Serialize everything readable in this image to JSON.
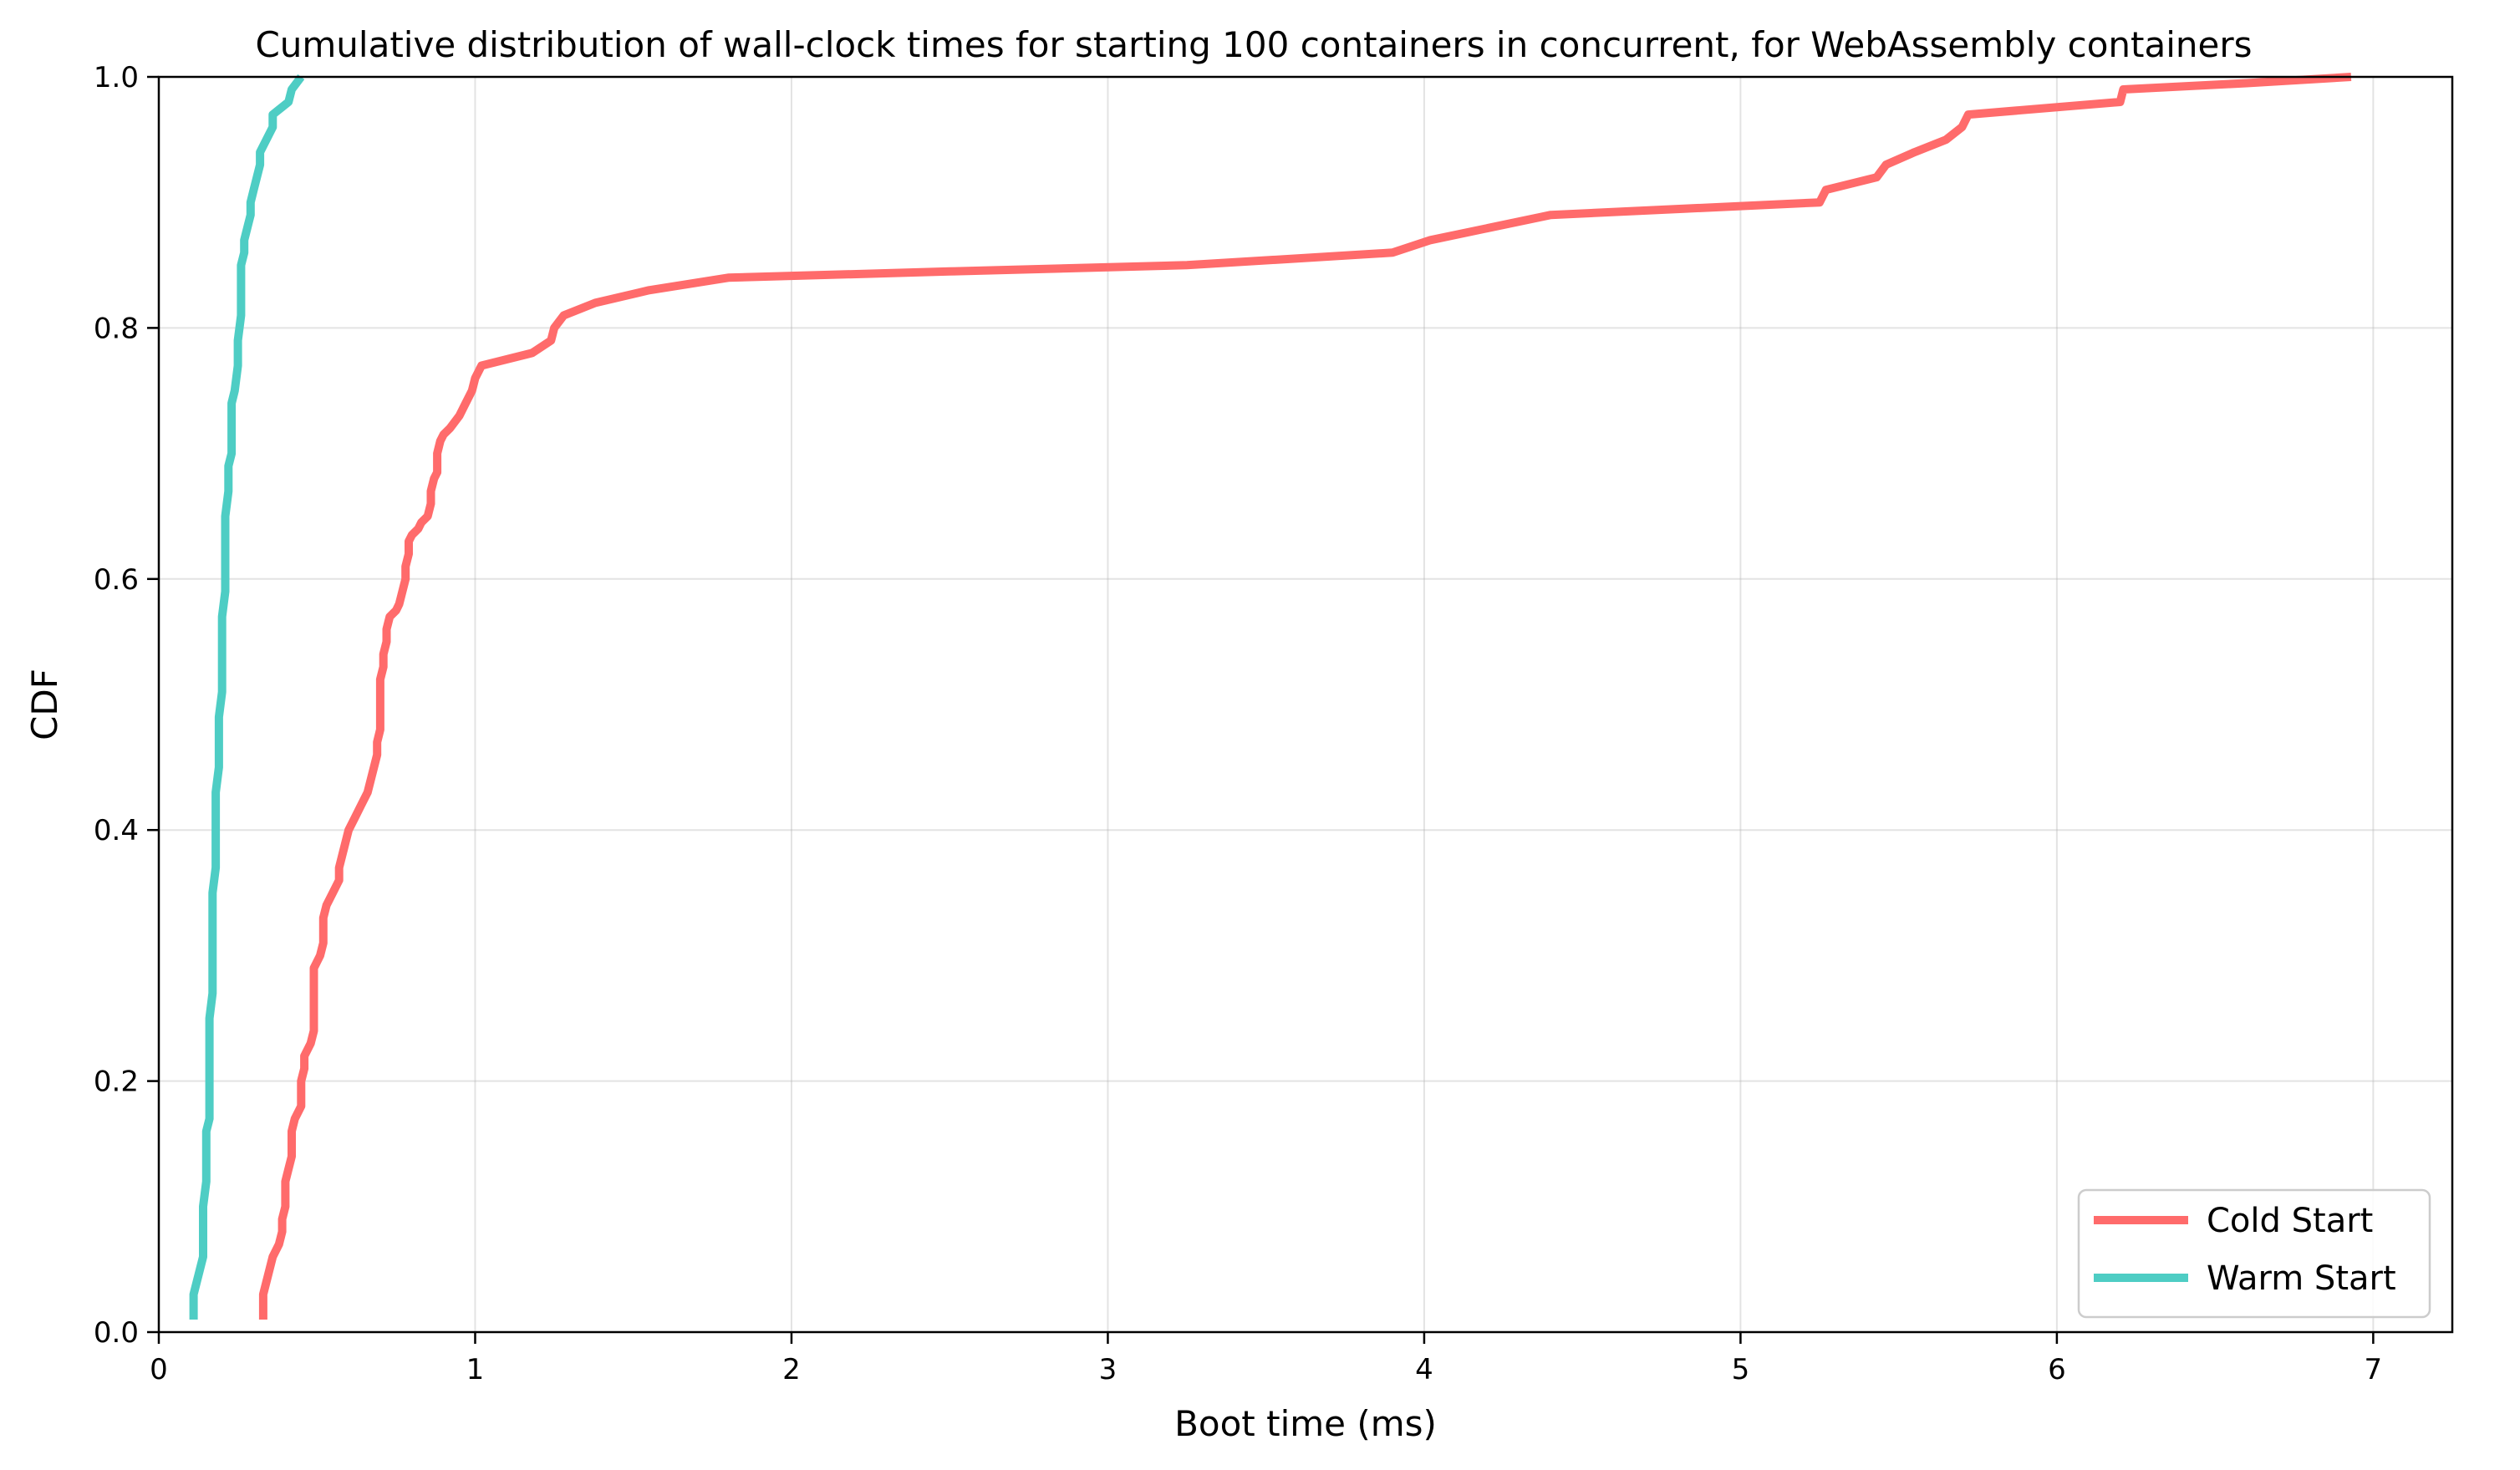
{
  "chart_data": {
    "type": "line",
    "title": "Cumulative distribution of wall-clock times for starting 100 containers in concurrent, for WebAssembly containers",
    "xlabel": "Boot time (ms)",
    "ylabel": "CDF",
    "xlim": [
      0,
      7.25
    ],
    "ylim": [
      0,
      1.0
    ],
    "xticks": [
      0,
      1,
      2,
      3,
      4,
      5,
      6,
      7
    ],
    "xtick_labels": [
      "0",
      "1",
      "2",
      "3",
      "4",
      "5",
      "6",
      "7"
    ],
    "yticks": [
      0.0,
      0.2,
      0.4,
      0.6,
      0.8,
      1.0
    ],
    "ytick_labels": [
      "0.0",
      "0.2",
      "0.4",
      "0.6",
      "0.8",
      "1.0"
    ],
    "grid": true,
    "legend_position": "lower-right",
    "series": [
      {
        "name": "Cold Start",
        "color": "#ff6b6b",
        "points": [
          [
            0.33,
            0.01
          ],
          [
            0.33,
            0.03
          ],
          [
            0.34,
            0.04
          ],
          [
            0.36,
            0.06
          ],
          [
            0.38,
            0.07
          ],
          [
            0.39,
            0.08
          ],
          [
            0.39,
            0.09
          ],
          [
            0.4,
            0.1
          ],
          [
            0.4,
            0.12
          ],
          [
            0.41,
            0.13
          ],
          [
            0.42,
            0.14
          ],
          [
            0.42,
            0.15
          ],
          [
            0.42,
            0.16
          ],
          [
            0.43,
            0.17
          ],
          [
            0.45,
            0.18
          ],
          [
            0.45,
            0.19
          ],
          [
            0.45,
            0.2
          ],
          [
            0.46,
            0.21
          ],
          [
            0.46,
            0.22
          ],
          [
            0.48,
            0.23
          ],
          [
            0.49,
            0.24
          ],
          [
            0.49,
            0.25
          ],
          [
            0.49,
            0.27
          ],
          [
            0.49,
            0.29
          ],
          [
            0.51,
            0.3
          ],
          [
            0.52,
            0.31
          ],
          [
            0.52,
            0.33
          ],
          [
            0.53,
            0.34
          ],
          [
            0.55,
            0.35
          ],
          [
            0.57,
            0.36
          ],
          [
            0.57,
            0.37
          ],
          [
            0.58,
            0.38
          ],
          [
            0.59,
            0.39
          ],
          [
            0.6,
            0.4
          ],
          [
            0.62,
            0.41
          ],
          [
            0.64,
            0.42
          ],
          [
            0.66,
            0.43
          ],
          [
            0.67,
            0.44
          ],
          [
            0.68,
            0.45
          ],
          [
            0.69,
            0.46
          ],
          [
            0.69,
            0.47
          ],
          [
            0.7,
            0.48
          ],
          [
            0.7,
            0.5
          ],
          [
            0.7,
            0.52
          ],
          [
            0.71,
            0.53
          ],
          [
            0.71,
            0.54
          ],
          [
            0.72,
            0.55
          ],
          [
            0.72,
            0.56
          ],
          [
            0.73,
            0.57
          ],
          [
            0.75,
            0.575
          ],
          [
            0.76,
            0.58
          ],
          [
            0.77,
            0.59
          ],
          [
            0.78,
            0.6
          ],
          [
            0.78,
            0.61
          ],
          [
            0.79,
            0.62
          ],
          [
            0.79,
            0.63
          ],
          [
            0.8,
            0.635
          ],
          [
            0.82,
            0.64
          ],
          [
            0.83,
            0.645
          ],
          [
            0.85,
            0.65
          ],
          [
            0.86,
            0.66
          ],
          [
            0.86,
            0.67
          ],
          [
            0.87,
            0.68
          ],
          [
            0.88,
            0.685
          ],
          [
            0.88,
            0.7
          ],
          [
            0.89,
            0.71
          ],
          [
            0.9,
            0.715
          ],
          [
            0.92,
            0.72
          ],
          [
            0.95,
            0.73
          ],
          [
            0.97,
            0.74
          ],
          [
            0.99,
            0.75
          ],
          [
            1.0,
            0.76
          ],
          [
            1.02,
            0.77
          ],
          [
            1.18,
            0.78
          ],
          [
            1.24,
            0.79
          ],
          [
            1.25,
            0.8
          ],
          [
            1.28,
            0.81
          ],
          [
            1.38,
            0.82
          ],
          [
            1.55,
            0.83
          ],
          [
            1.8,
            0.84
          ],
          [
            2.5,
            0.845
          ],
          [
            3.25,
            0.85
          ],
          [
            3.9,
            0.86
          ],
          [
            4.02,
            0.87
          ],
          [
            4.4,
            0.89
          ],
          [
            5.25,
            0.9
          ],
          [
            5.27,
            0.91
          ],
          [
            5.43,
            0.92
          ],
          [
            5.46,
            0.93
          ],
          [
            5.55,
            0.94
          ],
          [
            5.65,
            0.95
          ],
          [
            5.7,
            0.96
          ],
          [
            5.72,
            0.97
          ],
          [
            6.2,
            0.98
          ],
          [
            6.21,
            0.99
          ],
          [
            6.6,
            0.995
          ],
          [
            6.93,
            1.0
          ]
        ]
      },
      {
        "name": "Warm Start",
        "color": "#4ecdc4",
        "points": [
          [
            0.11,
            0.01
          ],
          [
            0.11,
            0.03
          ],
          [
            0.12,
            0.04
          ],
          [
            0.13,
            0.05
          ],
          [
            0.14,
            0.06
          ],
          [
            0.14,
            0.08
          ],
          [
            0.14,
            0.1
          ],
          [
            0.15,
            0.12
          ],
          [
            0.15,
            0.14
          ],
          [
            0.15,
            0.16
          ],
          [
            0.16,
            0.17
          ],
          [
            0.16,
            0.19
          ],
          [
            0.16,
            0.21
          ],
          [
            0.16,
            0.23
          ],
          [
            0.16,
            0.25
          ],
          [
            0.17,
            0.27
          ],
          [
            0.17,
            0.29
          ],
          [
            0.17,
            0.31
          ],
          [
            0.17,
            0.33
          ],
          [
            0.17,
            0.35
          ],
          [
            0.18,
            0.37
          ],
          [
            0.18,
            0.39
          ],
          [
            0.18,
            0.41
          ],
          [
            0.18,
            0.43
          ],
          [
            0.19,
            0.45
          ],
          [
            0.19,
            0.47
          ],
          [
            0.19,
            0.49
          ],
          [
            0.2,
            0.51
          ],
          [
            0.2,
            0.53
          ],
          [
            0.2,
            0.55
          ],
          [
            0.2,
            0.57
          ],
          [
            0.21,
            0.59
          ],
          [
            0.21,
            0.61
          ],
          [
            0.21,
            0.63
          ],
          [
            0.21,
            0.65
          ],
          [
            0.22,
            0.67
          ],
          [
            0.22,
            0.69
          ],
          [
            0.23,
            0.7
          ],
          [
            0.23,
            0.72
          ],
          [
            0.23,
            0.74
          ],
          [
            0.24,
            0.75
          ],
          [
            0.25,
            0.77
          ],
          [
            0.25,
            0.79
          ],
          [
            0.26,
            0.81
          ],
          [
            0.26,
            0.83
          ],
          [
            0.26,
            0.85
          ],
          [
            0.27,
            0.86
          ],
          [
            0.27,
            0.87
          ],
          [
            0.28,
            0.88
          ],
          [
            0.29,
            0.89
          ],
          [
            0.29,
            0.9
          ],
          [
            0.3,
            0.91
          ],
          [
            0.31,
            0.92
          ],
          [
            0.32,
            0.93
          ],
          [
            0.32,
            0.94
          ],
          [
            0.34,
            0.95
          ],
          [
            0.36,
            0.96
          ],
          [
            0.36,
            0.97
          ],
          [
            0.41,
            0.98
          ],
          [
            0.42,
            0.99
          ],
          [
            0.45,
            1.0
          ]
        ]
      }
    ]
  }
}
